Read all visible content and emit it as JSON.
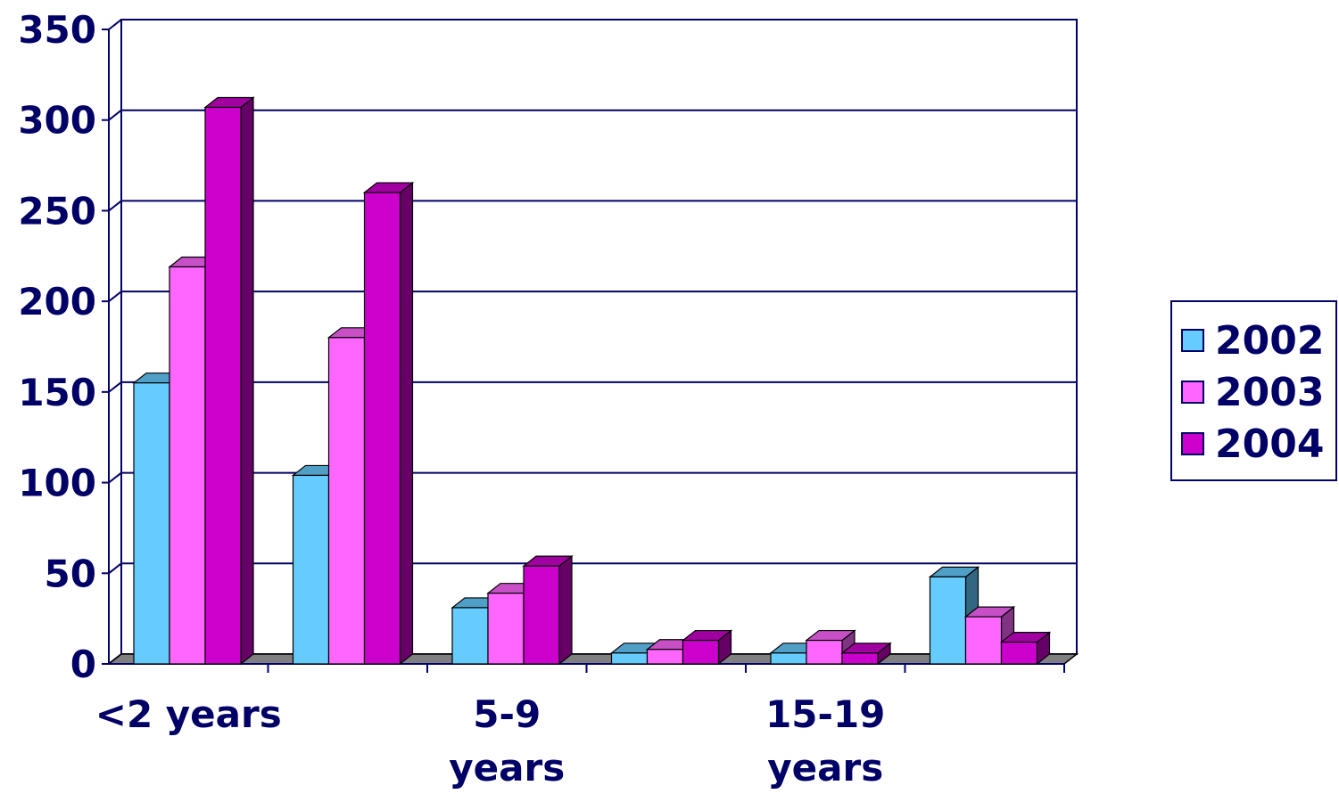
{
  "chart_data": {
    "type": "bar",
    "categories": [
      "<2 years",
      "",
      "5-9 years",
      "",
      "15-19 years",
      ""
    ],
    "category_label_lines": [
      [
        "<2 years"
      ],
      [],
      [
        "5-9",
        "years"
      ],
      [],
      [
        "15-19",
        "years"
      ],
      []
    ],
    "series": [
      {
        "name": "2002",
        "color": "#66CCFF",
        "values": [
          155,
          104,
          31,
          6,
          6,
          48
        ]
      },
      {
        "name": "2003",
        "color": "#FF66FF",
        "values": [
          219,
          180,
          39,
          8,
          13,
          26
        ]
      },
      {
        "name": "2004",
        "color": "#CC00CC",
        "values": [
          307,
          260,
          54,
          13,
          6,
          12
        ]
      }
    ],
    "ylim": [
      0,
      350
    ],
    "yticks": [
      "0",
      "50",
      "100",
      "150",
      "200",
      "250",
      "300",
      "350"
    ],
    "grid": true,
    "legend_position": "right",
    "style": "3d-clustered-column",
    "axis_color": "#000066",
    "floor_color": "#808080"
  }
}
